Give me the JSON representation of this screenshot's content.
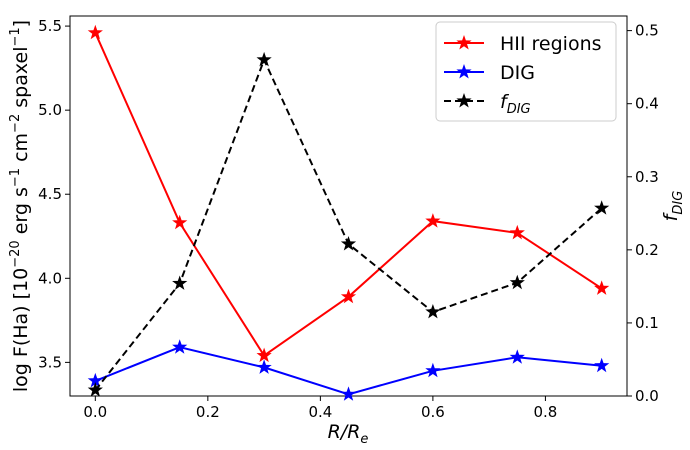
{
  "chart_data": {
    "type": "line",
    "xlabel": "R/R",
    "xlabel_sub": "e",
    "ylabel_left": "log F(Ha) [10",
    "ylabel_left_exp1": "−20",
    "ylabel_left_mid1": " erg s",
    "ylabel_left_exp2": "−1",
    "ylabel_left_mid2": " cm",
    "ylabel_left_exp3": "−2",
    "ylabel_left_mid3": " spaxel",
    "ylabel_left_exp4": "−1",
    "ylabel_left_end": "]",
    "ylabel_right": "f",
    "ylabel_right_sub": "DIG",
    "xlim": [
      -0.045,
      0.945
    ],
    "ylim_left": [
      3.3,
      5.56
    ],
    "ylim_right": [
      0.0,
      0.52
    ],
    "x_ticks": [
      0.0,
      0.2,
      0.4,
      0.6,
      0.8
    ],
    "x_tick_labels": [
      "0.0",
      "0.2",
      "0.4",
      "0.6",
      "0.8"
    ],
    "y_left_ticks": [
      3.5,
      4.0,
      4.5,
      5.0,
      5.5
    ],
    "y_left_tick_labels": [
      "3.5",
      "4.0",
      "4.5",
      "5.0",
      "5.5"
    ],
    "y_right_ticks": [
      0.0,
      0.1,
      0.2,
      0.3,
      0.4,
      0.5
    ],
    "y_right_tick_labels": [
      "0.0",
      "0.1",
      "0.2",
      "0.3",
      "0.4",
      "0.5"
    ],
    "x": [
      0.0,
      0.15,
      0.3,
      0.45,
      0.6,
      0.75,
      0.9
    ],
    "grid": false,
    "legend_position": "top-right",
    "series": [
      {
        "name": "HII regions",
        "axis": "left",
        "color": "#ff0000",
        "dash": "solid",
        "marker": "star",
        "values": [
          5.46,
          4.33,
          3.54,
          3.89,
          4.34,
          4.27,
          3.94
        ]
      },
      {
        "name": "DIG",
        "axis": "left",
        "color": "#0000ff",
        "dash": "solid",
        "marker": "star",
        "values": [
          3.39,
          3.59,
          3.47,
          3.31,
          3.45,
          3.53,
          3.48
        ]
      },
      {
        "name": "f",
        "name_sub": "DIG",
        "axis": "right",
        "color": "#000000",
        "dash": "dashed",
        "marker": "star",
        "values": [
          0.008,
          0.154,
          0.46,
          0.208,
          0.115,
          0.155,
          0.257
        ]
      }
    ]
  }
}
